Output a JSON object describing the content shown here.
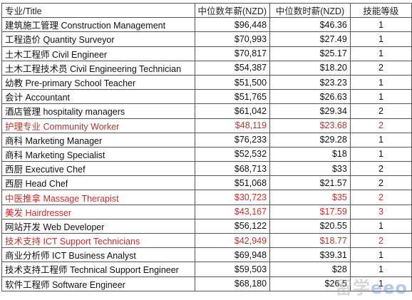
{
  "table": {
    "headers": [
      "专业/Title",
      "中位数年薪(NZD)",
      "中位数时薪(NZD)",
      "技能等级"
    ],
    "rows": [
      {
        "title": "建筑施工管理  Construction Management",
        "annual": "$96,448",
        "hourly": "$46.36",
        "level": "1",
        "highlight": false
      },
      {
        "title": "工程造价  Quantity Surveyor",
        "annual": "$70,993",
        "hourly": "$27.49",
        "level": "1",
        "highlight": false
      },
      {
        "title": "土木工程师  Civil Engineer",
        "annual": "$70,817",
        "hourly": "$25.17",
        "level": "1",
        "highlight": false
      },
      {
        "title": "土木工程技术员 Civil Engineering Technician",
        "annual": "$54,387",
        "hourly": "$18.20",
        "level": "2",
        "highlight": false
      },
      {
        "title": "幼教  Pre-primary School Teacher",
        "annual": "$51,500",
        "hourly": "$23.23",
        "level": "1",
        "highlight": false
      },
      {
        "title": "会计 Accountant",
        "annual": "$51,765",
        "hourly": "$26.63",
        "level": "1",
        "highlight": false
      },
      {
        "title": "酒店管理 hospitality managers",
        "annual": "$61,042",
        "hourly": "$29.34",
        "level": "2",
        "highlight": false
      },
      {
        "title": "护理专业  Community Worker",
        "annual": "$48,119",
        "hourly": "$23.68",
        "level": "2",
        "highlight": true
      },
      {
        "title": "商科  Marketing Manager",
        "annual": "$76,233",
        "hourly": "$29.28",
        "level": "1",
        "highlight": false
      },
      {
        "title": "商科  Marketing Specialist",
        "annual": "$52,532",
        "hourly": "$18",
        "level": "1",
        "highlight": false
      },
      {
        "title": "西厨  Executive Chef",
        "annual": "$68,713",
        "hourly": "$33",
        "level": "2",
        "highlight": false
      },
      {
        "title": "西厨  Head Chef",
        "annual": "$51,068",
        "hourly": "$21.57",
        "level": "2",
        "highlight": false
      },
      {
        "title": "中医推拿  Massage Therapist",
        "annual": "$30,723",
        "hourly": "$35",
        "level": "2",
        "highlight": true
      },
      {
        "title": "美发  Hairdresser",
        "annual": "$43,167",
        "hourly": "$17.59",
        "level": "3",
        "highlight": true
      },
      {
        "title": "网站开发  Web Developer",
        "annual": "$56,122",
        "hourly": "$20.55",
        "level": "1",
        "highlight": false
      },
      {
        "title": "技术支持  ICT Support Technicians",
        "annual": "$42,949",
        "hourly": "$18.77",
        "level": "2",
        "highlight": true
      },
      {
        "title": "商业分析师  ICT Business Analyst",
        "annual": "$69,948",
        "hourly": "$39.31",
        "level": "1",
        "highlight": false
      },
      {
        "title": "技术支持工程师  Technical Support Engineer",
        "annual": "$59,503",
        "hourly": "$28",
        "level": "1",
        "highlight": false
      },
      {
        "title": "软件工程师  Software Engineer",
        "annual": "$68,180",
        "hourly": "$26.5",
        "level": "1",
        "highlight": false
      }
    ]
  },
  "watermark": "留学eeo",
  "colors": {
    "highlight": "#c9302c",
    "text": "#111111",
    "border": "#555555"
  }
}
